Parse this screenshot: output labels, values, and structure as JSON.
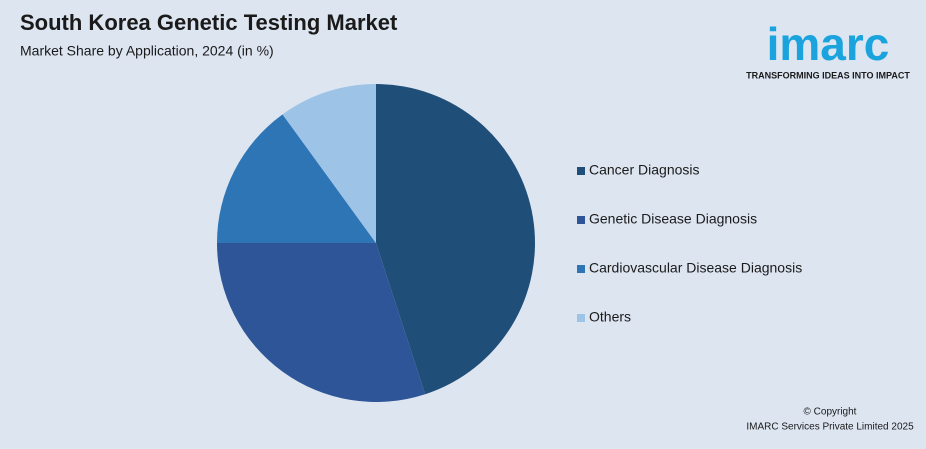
{
  "chart_data": {
    "type": "pie",
    "title": "South Korea Genetic Testing Market",
    "subtitle": "Market Share by Application, 2024 (in %)",
    "categories": [
      "Cancer Diagnosis",
      "Genetic Disease Diagnosis",
      "Cardiovascular Disease Diagnosis",
      "Others"
    ],
    "values": [
      45,
      30,
      15,
      10
    ],
    "colors": [
      "#1f4e79",
      "#2e5597",
      "#2e75b6",
      "#9dc3e6"
    ],
    "legend": "right"
  },
  "logo": {
    "name": "imarc",
    "tagline": "TRANSFORMING IDEAS INTO IMPACT"
  },
  "footer": {
    "copyright": "© Copyright",
    "owner": "IMARC Services Private Limited 2025"
  }
}
